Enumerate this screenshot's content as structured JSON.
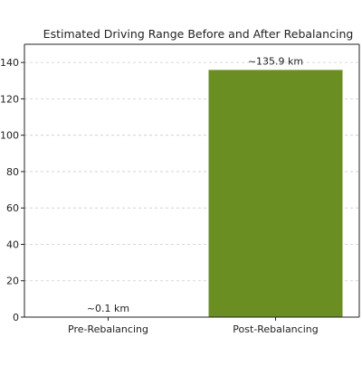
{
  "chart_data": {
    "type": "bar",
    "title": "Estimated Driving Range Before and After Rebalancing",
    "xlabel": "",
    "ylabel": "",
    "categories": [
      "Pre-Rebalancing",
      "Post-Rebalancing"
    ],
    "values": [
      0.1,
      135.9
    ],
    "data_labels": [
      "~0.1 km",
      "~135.9 km"
    ],
    "ylim": [
      0,
      150
    ],
    "yticks": [
      0,
      20,
      40,
      60,
      80,
      100,
      120,
      140
    ],
    "grid": true,
    "bar_color": "#6b8e23"
  }
}
